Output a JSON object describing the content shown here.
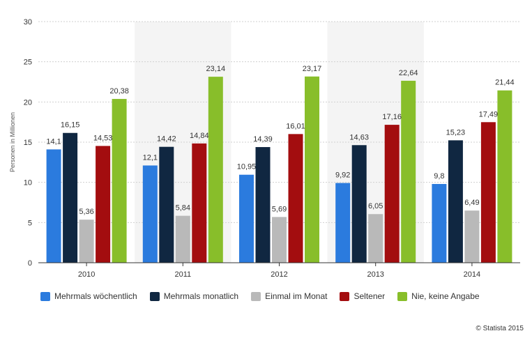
{
  "chart_data": {
    "type": "bar",
    "ylabel": "Personen in Millionen",
    "ylim": [
      0,
      30
    ],
    "yticks": [
      0,
      5,
      10,
      15,
      20,
      25,
      30
    ],
    "categories": [
      "2010",
      "2011",
      "2012",
      "2013",
      "2014"
    ],
    "series": [
      {
        "name": "Mehrmals wöchentlich",
        "color": "#2b7bde",
        "values": [
          14.1,
          12.1,
          10.95,
          9.92,
          9.8
        ],
        "labels": [
          "14,1",
          "12,1",
          "10,95",
          "9,92",
          "9,8"
        ]
      },
      {
        "name": "Mehrmals monatlich",
        "color": "#102741",
        "values": [
          16.15,
          14.42,
          14.39,
          14.63,
          15.23
        ],
        "labels": [
          "16,15",
          "14,42",
          "14,39",
          "14,63",
          "15,23"
        ]
      },
      {
        "name": "Einmal im Monat",
        "color": "#b9b9b9",
        "values": [
          5.36,
          5.84,
          5.69,
          6.05,
          6.49
        ],
        "labels": [
          "5,36",
          "5,84",
          "5,69",
          "6,05",
          "6,49"
        ]
      },
      {
        "name": "Seltener",
        "color": "#a30d0f",
        "values": [
          14.53,
          14.84,
          16.01,
          17.16,
          17.49
        ],
        "labels": [
          "14,53",
          "14,84",
          "16,01",
          "17,16",
          "17,49"
        ]
      },
      {
        "name": "Nie, keine Angabe",
        "color": "#88be2a",
        "values": [
          20.38,
          23.14,
          23.17,
          22.64,
          21.44
        ],
        "labels": [
          "20,38",
          "23,14",
          "23,17",
          "22,64",
          "21,44"
        ]
      }
    ],
    "grid": true,
    "legend_position": "bottom"
  },
  "credit": "© Statista 2015"
}
